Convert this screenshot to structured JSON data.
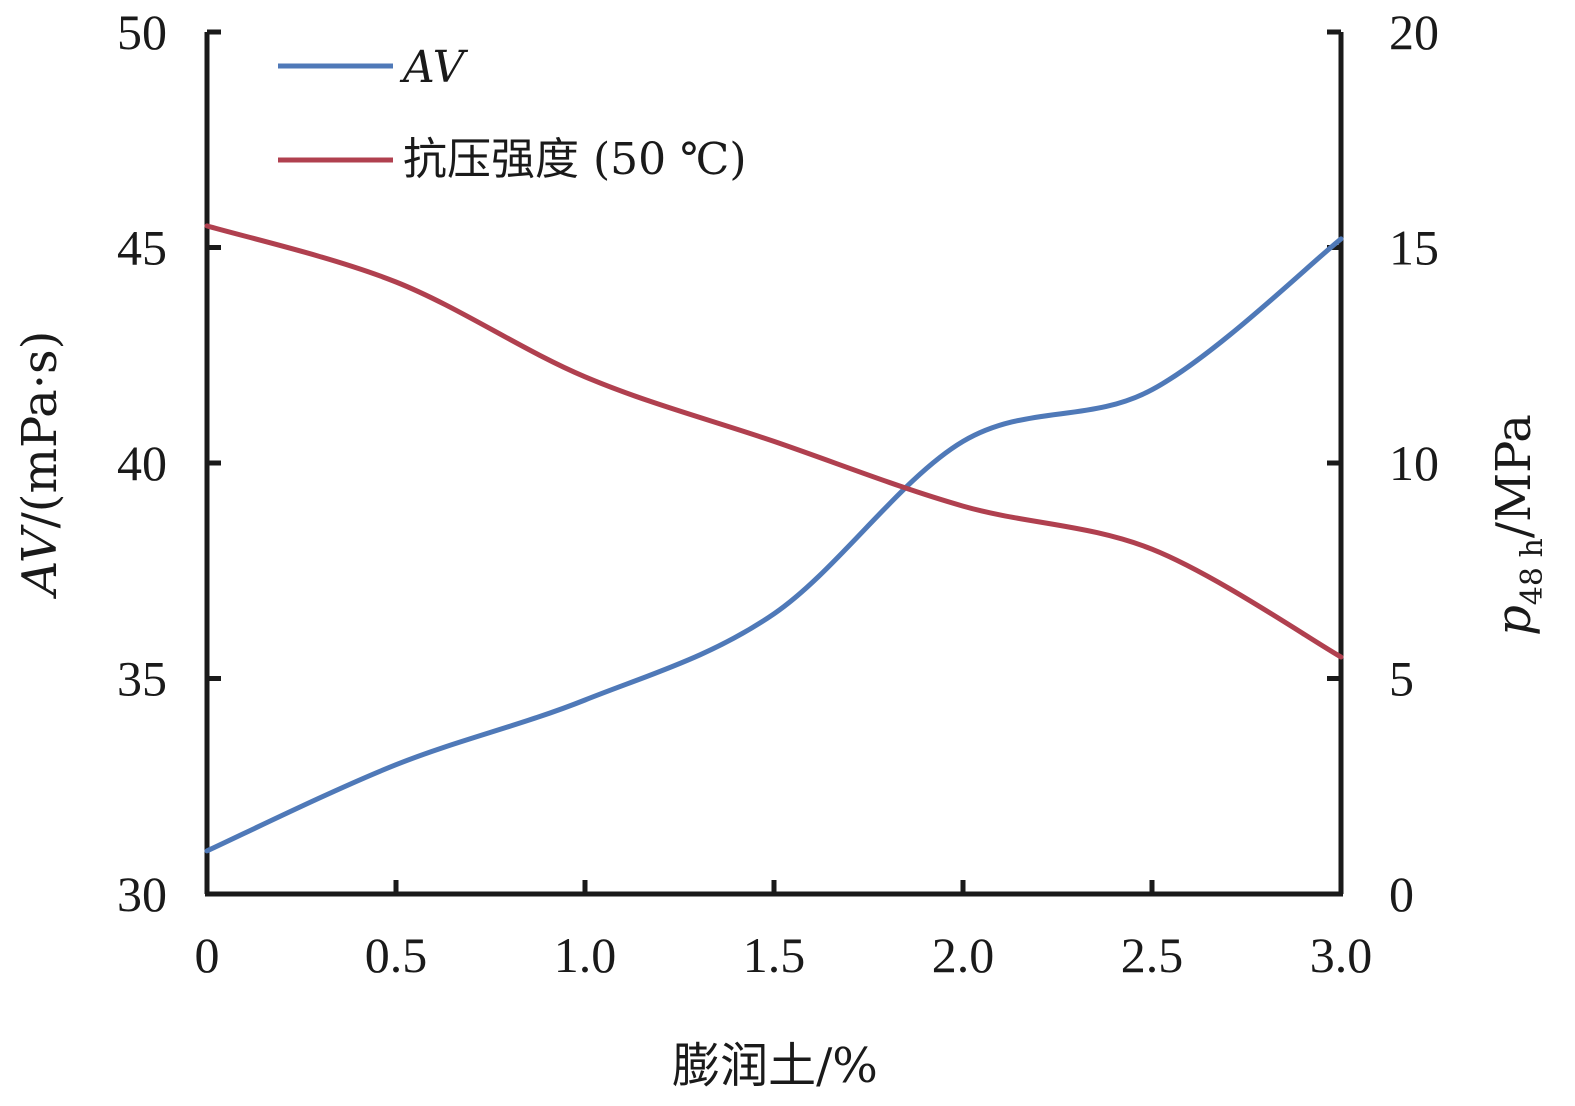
{
  "chart_data": {
    "type": "line",
    "xlabel": "膨润土/%",
    "ylabel_left": {
      "italic": "AV",
      "rest": "/(mPa·s)"
    },
    "ylabel_right": {
      "base": "p",
      "sub": "48 h",
      "rest": "/MPa"
    },
    "x_ticks": [
      "0",
      "0.5",
      "1.0",
      "1.5",
      "2.0",
      "2.5",
      "3.0"
    ],
    "xlim": [
      0,
      3
    ],
    "y_left_ticks": [
      "30",
      "35",
      "40",
      "45",
      "50"
    ],
    "ylim_left": [
      30,
      50
    ],
    "y_right_ticks": [
      "0",
      "5",
      "10",
      "15",
      "20"
    ],
    "ylim_right": [
      0,
      20
    ],
    "legend_position": "top-left",
    "series": [
      {
        "name": "AV",
        "name_style": "italic",
        "axis": "left",
        "color": "#4f79b8",
        "x": [
          0,
          0.5,
          1.0,
          1.5,
          2.0,
          2.5,
          3.0
        ],
        "values": [
          31.0,
          33.0,
          34.5,
          36.5,
          40.5,
          41.7,
          45.2
        ]
      },
      {
        "name": "抗压强度 (50 ℃)",
        "name_style": "normal",
        "axis": "right",
        "color": "#b0404f",
        "x": [
          0,
          0.5,
          1.0,
          1.5,
          2.0,
          2.5,
          3.0
        ],
        "values": [
          15.5,
          14.2,
          12.0,
          10.5,
          9.0,
          8.0,
          5.5
        ]
      }
    ]
  }
}
